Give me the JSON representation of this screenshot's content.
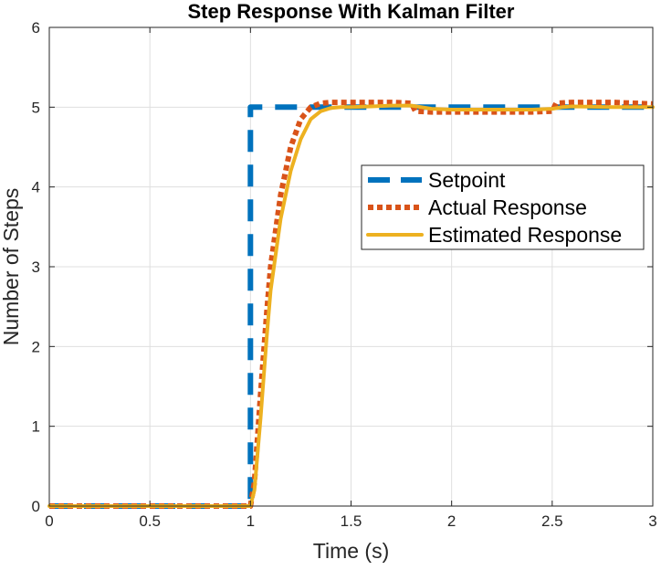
{
  "chart_data": {
    "type": "line",
    "title": "Step Response With Kalman Filter",
    "xlabel": "Time (s)",
    "ylabel": "Number of Steps",
    "xlim": [
      0,
      3
    ],
    "ylim": [
      0,
      6
    ],
    "xticks": [
      0,
      0.5,
      1,
      1.5,
      2,
      2.5,
      3
    ],
    "xtick_labels": [
      "0",
      "0.5",
      "1",
      "1.5",
      "2",
      "2.5",
      "3"
    ],
    "yticks": [
      0,
      1,
      2,
      3,
      4,
      5,
      6
    ],
    "ytick_labels": [
      "0",
      "1",
      "2",
      "3",
      "4",
      "5",
      "6"
    ],
    "grid": true,
    "legend_position": "center-right",
    "series": [
      {
        "name": "Setpoint",
        "color": "#0072BD",
        "style": "dashed",
        "x": [
          0,
          1,
          1,
          3
        ],
        "y": [
          0,
          0,
          5,
          5
        ]
      },
      {
        "name": "Actual Response",
        "color": "#D95319",
        "style": "dotted",
        "x": [
          0,
          1,
          1.02,
          1.05,
          1.08,
          1.1,
          1.15,
          1.2,
          1.25,
          1.3,
          1.35,
          1.4,
          1.45,
          1.5,
          1.6,
          1.7,
          1.8,
          1.82,
          1.9,
          2.0,
          2.2,
          2.4,
          2.5,
          2.52,
          2.6,
          2.8,
          3.0
        ],
        "y": [
          0,
          0,
          0.3,
          1.4,
          2.4,
          3.0,
          3.9,
          4.5,
          4.85,
          5.0,
          5.05,
          5.06,
          5.06,
          5.06,
          5.06,
          5.06,
          5.05,
          4.95,
          4.94,
          4.94,
          4.94,
          4.94,
          4.95,
          5.05,
          5.06,
          5.06,
          5.04
        ]
      },
      {
        "name": "Estimated Response",
        "color": "#EDB120",
        "style": "solid",
        "x": [
          0,
          1,
          1.02,
          1.05,
          1.08,
          1.1,
          1.15,
          1.2,
          1.25,
          1.3,
          1.35,
          1.4,
          1.45,
          1.5,
          1.6,
          1.7,
          1.8,
          1.85,
          1.9,
          2.0,
          2.2,
          2.4,
          2.5,
          2.55,
          2.6,
          2.8,
          3.0
        ],
        "y": [
          0,
          0,
          0.2,
          1.1,
          2.1,
          2.7,
          3.6,
          4.2,
          4.6,
          4.85,
          4.95,
          4.99,
          5.0,
          5.0,
          5.01,
          5.02,
          5.02,
          5.0,
          4.98,
          4.97,
          4.97,
          4.97,
          4.98,
          5.0,
          5.01,
          5.0,
          5.0
        ]
      }
    ]
  }
}
